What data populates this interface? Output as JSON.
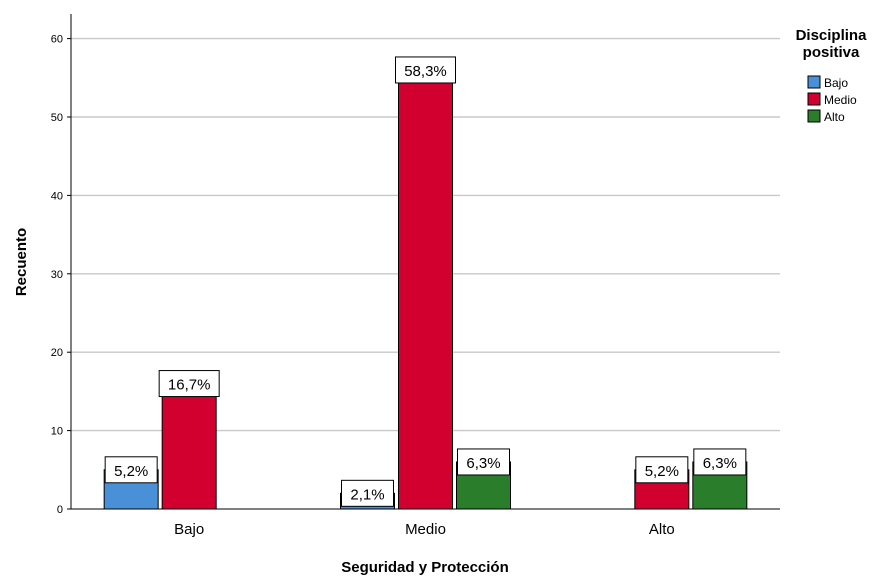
{
  "chart_data": {
    "type": "bar",
    "categories": [
      "Bajo",
      "Medio",
      "Alto"
    ],
    "series": [
      {
        "name": "Bajo",
        "color": "#4a90d9",
        "values": [
          5,
          2,
          0
        ],
        "labels": [
          "5,2%",
          "2,1%",
          ""
        ]
      },
      {
        "name": "Medio",
        "color": "#d1002f",
        "values": [
          16,
          56,
          5
        ],
        "labels": [
          "16,7%",
          "58,3%",
          "5,2%"
        ]
      },
      {
        "name": "Alto",
        "color": "#2a7d2a",
        "values": [
          0,
          6,
          6
        ],
        "labels": [
          "",
          "6,3%",
          "6,3%"
        ]
      }
    ],
    "xlabel": "Seguridad y Protección",
    "ylabel": "Recuento",
    "ylim": [
      0,
      63
    ],
    "yticks": [
      0,
      10,
      20,
      30,
      40,
      50,
      60
    ],
    "grid": true,
    "legend": {
      "title_lines": [
        "Disciplina",
        "positiva"
      ],
      "placement": "right"
    }
  }
}
